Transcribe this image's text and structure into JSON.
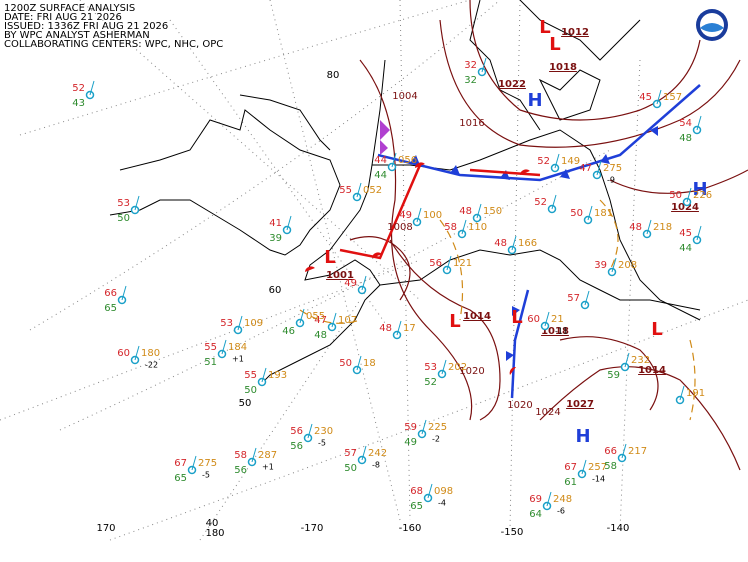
{
  "header": {
    "lines": [
      "1200Z SURFACE ANALYSIS",
      "DATE: FRI AUG 21 2026",
      "ISSUED: 1336Z FRI AUG 21 2026",
      "BY WPC ANALYST ASHERMAN",
      "COLLABORATING CENTERS: WPC, NHC, OPC"
    ]
  },
  "grid_labels": [
    "80",
    "60",
    "50",
    "40",
    "170",
    "180",
    "-170",
    "-160",
    "-150",
    "-140"
  ],
  "pressure_centers": [
    {
      "symbol": "L",
      "pressure": "1001"
    },
    {
      "symbol": "L",
      "pressure": "1014"
    },
    {
      "symbol": "L",
      "pressure": "1018"
    },
    {
      "symbol": "L",
      "pressure": "1012"
    },
    {
      "symbol": "H",
      "pressure": "1022"
    },
    {
      "symbol": "L",
      "pressure": "1018"
    },
    {
      "symbol": "H",
      "pressure": "1027"
    },
    {
      "symbol": "L",
      "pressure": "1014"
    },
    {
      "symbol": "H",
      "pressure": "1024"
    }
  ],
  "isobar_labels": [
    "1004",
    "1016",
    "1020",
    "1020",
    "1024",
    "1008"
  ],
  "stations": [
    {
      "temp": "52",
      "dew": "43"
    },
    {
      "temp": "53",
      "dew": "50"
    },
    {
      "temp": "66",
      "dew": "65"
    },
    {
      "temp": "60",
      "pres": "180",
      "tend": "-22"
    },
    {
      "temp": "55",
      "pres": "184",
      "tend": "+1",
      "dew": "51"
    },
    {
      "temp": "53",
      "pres": "109"
    },
    {
      "temp": "55",
      "pres": "193",
      "dew": "50"
    },
    {
      "temp": "56",
      "pres": "230",
      "tend": "-5",
      "dew": "56"
    },
    {
      "temp": "57",
      "pres": "242",
      "tend": "-8",
      "dew": "50"
    },
    {
      "temp": "59",
      "pres": "225",
      "tend": "-2",
      "dew": "49"
    },
    {
      "temp": "68",
      "pres": "098",
      "tend": "-4",
      "dew": "65"
    },
    {
      "temp": "67",
      "pres": "275",
      "tend": "-5",
      "dew": "65"
    },
    {
      "temp": "58",
      "pres": "287",
      "tend": "+1",
      "dew": "56"
    },
    {
      "temp": "69",
      "pres": "248",
      "tend": "-6",
      "dew": "64"
    },
    {
      "temp": "67",
      "pres": "257",
      "tend": "-14",
      "dew": "61"
    },
    {
      "temp": "66",
      "pres": "217",
      "dew": "58"
    },
    {
      "temp": "53",
      "pres": "202",
      "dew": "52"
    },
    {
      "temp": "56",
      "pres": "121"
    },
    {
      "temp": "48",
      "pres": "150"
    },
    {
      "temp": "58",
      "pres": "110"
    },
    {
      "temp": "48",
      "pres": "166"
    },
    {
      "temp": "52",
      "pres": "149"
    },
    {
      "temp": "52"
    },
    {
      "temp": "50",
      "pres": "181"
    },
    {
      "temp": "48",
      "pres": "218"
    },
    {
      "temp": "45",
      "dew": "44"
    },
    {
      "temp": "50",
      "pres": "226"
    },
    {
      "temp": "39",
      "pres": "208"
    },
    {
      "temp": "54",
      "dew": "48"
    },
    {
      "temp": "45",
      "pres": "157"
    },
    {
      "temp": "32",
      "dew": "32"
    },
    {
      "temp": "49",
      "pres": "100"
    },
    {
      "temp": "55",
      "pres": "052"
    },
    {
      "temp": "44",
      "pres": "056",
      "dew": "44"
    },
    {
      "temp": "41",
      "dew": "39"
    },
    {
      "temp": "47",
      "pres": "107",
      "dew": "48"
    },
    {
      "temp": "50",
      "pres": "18"
    },
    {
      "temp": "47",
      "pres": "275",
      "tend": "-9"
    },
    {
      "temp": "48",
      "pres": "17"
    },
    {
      "temp": "49"
    },
    {
      "temp": "57"
    },
    {
      "temp": "60",
      "pres": "21",
      "tend": "-11"
    },
    {
      "pres": "232",
      "dew": "59"
    },
    {
      "pres": "191"
    },
    {
      "pres": "055",
      "dew": "46"
    }
  ]
}
